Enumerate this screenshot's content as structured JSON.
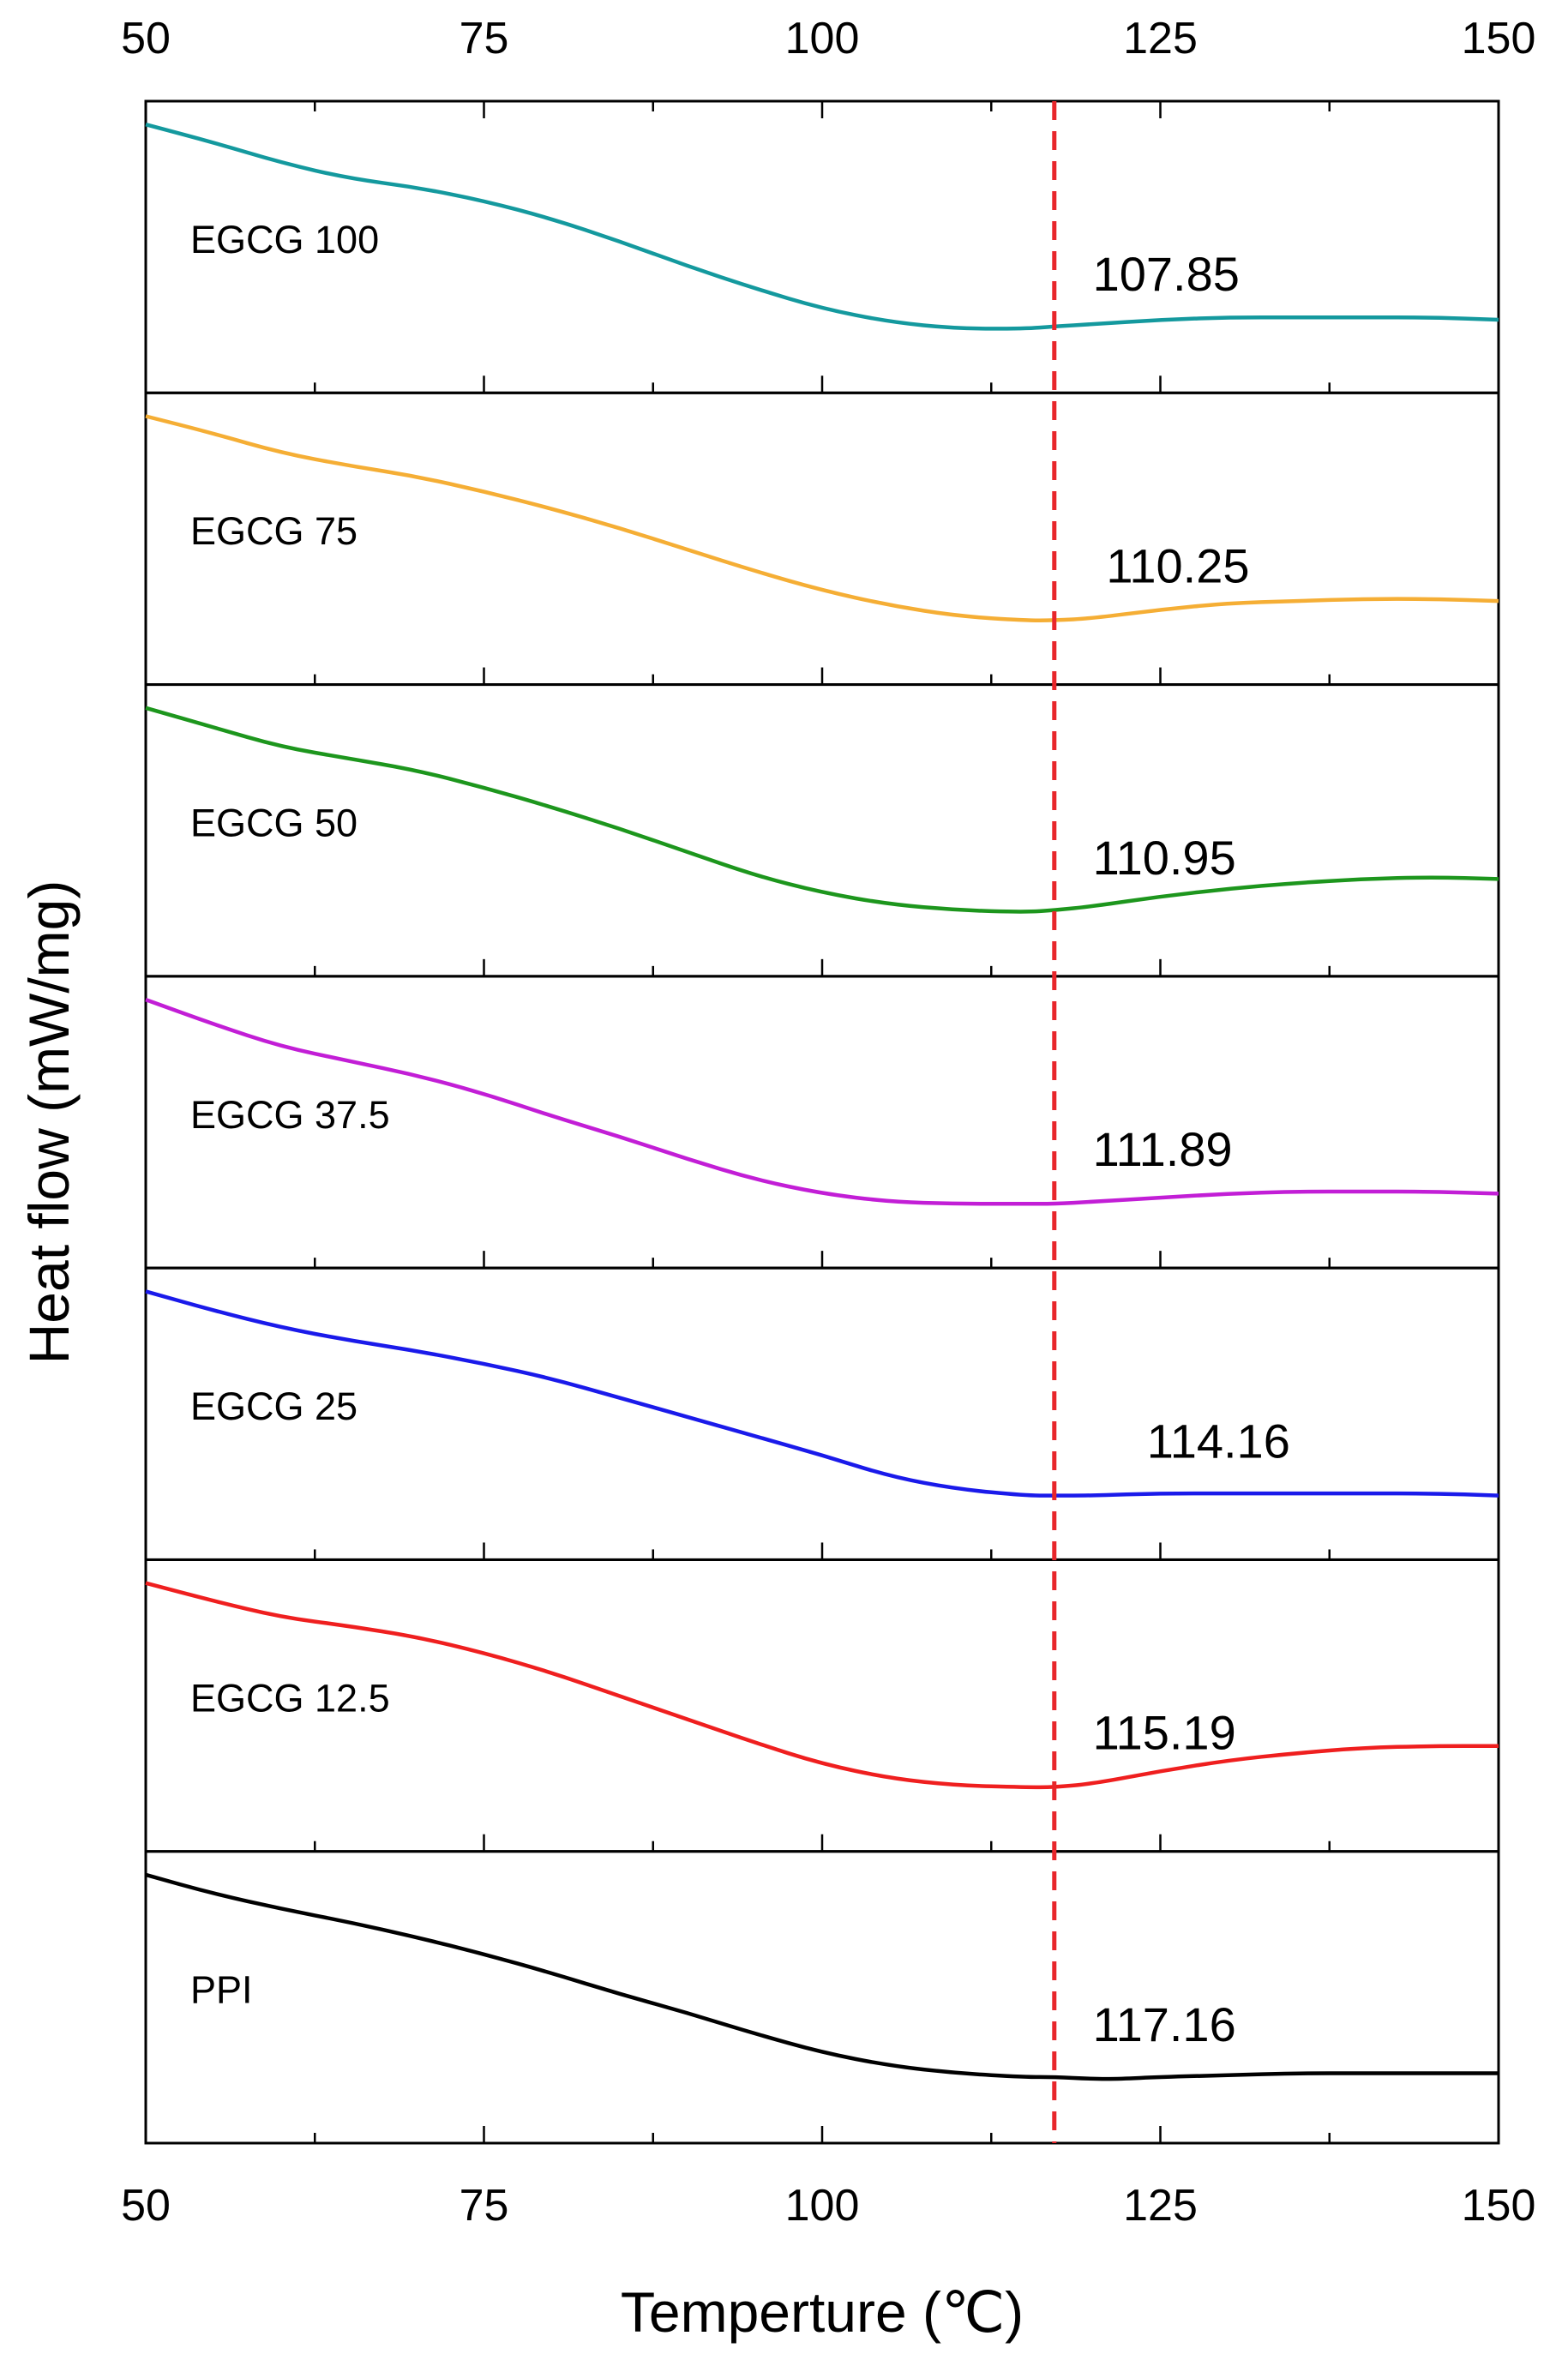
{
  "chart_data": {
    "type": "line",
    "layout": "stacked-panels",
    "title": "",
    "xlabel": "Temperture (℃)",
    "ylabel": "Heat flow (mW/mg)",
    "xlim": [
      50,
      150
    ],
    "xticks": [
      50,
      75,
      100,
      125,
      150
    ],
    "minor_xtick_step": 12.5,
    "reference_line": {
      "x": 117.16,
      "color": "#e8262b",
      "style": "dashed"
    },
    "series": [
      {
        "name": "EGCG 100",
        "label": "EGCG 100",
        "peak_label": "107.85",
        "peak_label_x": 120,
        "color": "#14999e",
        "x": [
          50,
          55,
          60,
          65,
          70,
          75,
          80,
          85,
          90,
          95,
          100,
          105,
          110,
          115,
          117.16,
          120,
          125,
          130,
          135,
          140,
          145,
          150
        ],
        "y": [
          0.88,
          0.8,
          0.71,
          0.64,
          0.6,
          0.54,
          0.46,
          0.36,
          0.25,
          0.15,
          0.06,
          0.0,
          -0.03,
          -0.03,
          -0.02,
          -0.01,
          0.01,
          0.02,
          0.02,
          0.02,
          0.02,
          0.01
        ]
      },
      {
        "name": "EGCG 75",
        "label": "EGCG 75",
        "peak_label": "110.25",
        "peak_label_x": 121,
        "color": "#f5ae35",
        "x": [
          50,
          55,
          60,
          65,
          70,
          75,
          80,
          85,
          90,
          95,
          100,
          105,
          110,
          115,
          117.16,
          120,
          125,
          130,
          135,
          140,
          145,
          150
        ],
        "y": [
          0.9,
          0.82,
          0.73,
          0.67,
          0.62,
          0.55,
          0.47,
          0.38,
          0.28,
          0.18,
          0.09,
          0.02,
          -0.03,
          -0.05,
          -0.05,
          -0.04,
          0.0,
          0.03,
          0.04,
          0.05,
          0.05,
          0.04
        ]
      },
      {
        "name": "EGCG 50",
        "label": "EGCG 50",
        "peak_label": "110.95",
        "peak_label_x": 120,
        "color": "#1d961d",
        "x": [
          50,
          55,
          60,
          65,
          70,
          75,
          80,
          85,
          90,
          95,
          100,
          105,
          110,
          115,
          117.16,
          120,
          125,
          130,
          135,
          140,
          145,
          150
        ],
        "y": [
          1.0,
          0.9,
          0.8,
          0.74,
          0.68,
          0.59,
          0.49,
          0.38,
          0.26,
          0.14,
          0.05,
          -0.01,
          -0.04,
          -0.05,
          -0.04,
          -0.02,
          0.03,
          0.07,
          0.1,
          0.12,
          0.13,
          0.12
        ]
      },
      {
        "name": "EGCG 37.5",
        "label": "EGCG 37.5",
        "peak_label": "111.89",
        "peak_label_x": 120,
        "color": "#c21ed6",
        "x": [
          50,
          55,
          60,
          65,
          70,
          75,
          80,
          85,
          90,
          95,
          100,
          105,
          110,
          115,
          117.16,
          120,
          125,
          130,
          135,
          140,
          145,
          150
        ],
        "y": [
          0.98,
          0.86,
          0.75,
          0.68,
          0.61,
          0.52,
          0.41,
          0.31,
          0.2,
          0.1,
          0.03,
          -0.01,
          -0.02,
          -0.02,
          -0.02,
          -0.01,
          0.01,
          0.03,
          0.04,
          0.04,
          0.04,
          0.03
        ]
      },
      {
        "name": "EGCG 25",
        "label": "EGCG 25",
        "peak_label": "114.16",
        "peak_label_x": 124,
        "color": "#1a1aea",
        "x": [
          50,
          55,
          60,
          65,
          70,
          75,
          80,
          85,
          90,
          95,
          100,
          105,
          110,
          115,
          117.16,
          120,
          125,
          130,
          135,
          140,
          145,
          150
        ],
        "y": [
          0.95,
          0.86,
          0.78,
          0.72,
          0.67,
          0.61,
          0.54,
          0.45,
          0.36,
          0.27,
          0.18,
          0.08,
          0.02,
          -0.01,
          -0.01,
          -0.01,
          0.0,
          0.0,
          0.0,
          0.0,
          0.0,
          -0.01
        ]
      },
      {
        "name": "EGCG 12.5",
        "label": "EGCG 12.5",
        "peak_label": "115.19",
        "peak_label_x": 120,
        "color": "#ef1f1f",
        "x": [
          50,
          55,
          60,
          65,
          70,
          75,
          80,
          85,
          90,
          95,
          100,
          105,
          110,
          115,
          117.16,
          120,
          125,
          130,
          135,
          140,
          145,
          150
        ],
        "y": [
          1.05,
          0.95,
          0.86,
          0.81,
          0.75,
          0.66,
          0.55,
          0.42,
          0.29,
          0.16,
          0.04,
          -0.04,
          -0.08,
          -0.09,
          -0.09,
          -0.07,
          0.0,
          0.06,
          0.1,
          0.13,
          0.14,
          0.14
        ]
      },
      {
        "name": "PPI",
        "label": "PPI",
        "peak_label": "117.16",
        "peak_label_x": 120,
        "color": "#000000",
        "x": [
          50,
          55,
          60,
          65,
          70,
          75,
          80,
          85,
          90,
          95,
          100,
          105,
          110,
          115,
          117.16,
          120,
          122,
          125,
          130,
          135,
          140,
          145,
          150
        ],
        "y": [
          1.02,
          0.92,
          0.84,
          0.77,
          0.69,
          0.6,
          0.5,
          0.39,
          0.29,
          0.18,
          0.08,
          0.01,
          -0.03,
          -0.05,
          -0.05,
          -0.06,
          -0.06,
          -0.05,
          -0.04,
          -0.03,
          -0.03,
          -0.03,
          -0.03
        ]
      }
    ]
  }
}
